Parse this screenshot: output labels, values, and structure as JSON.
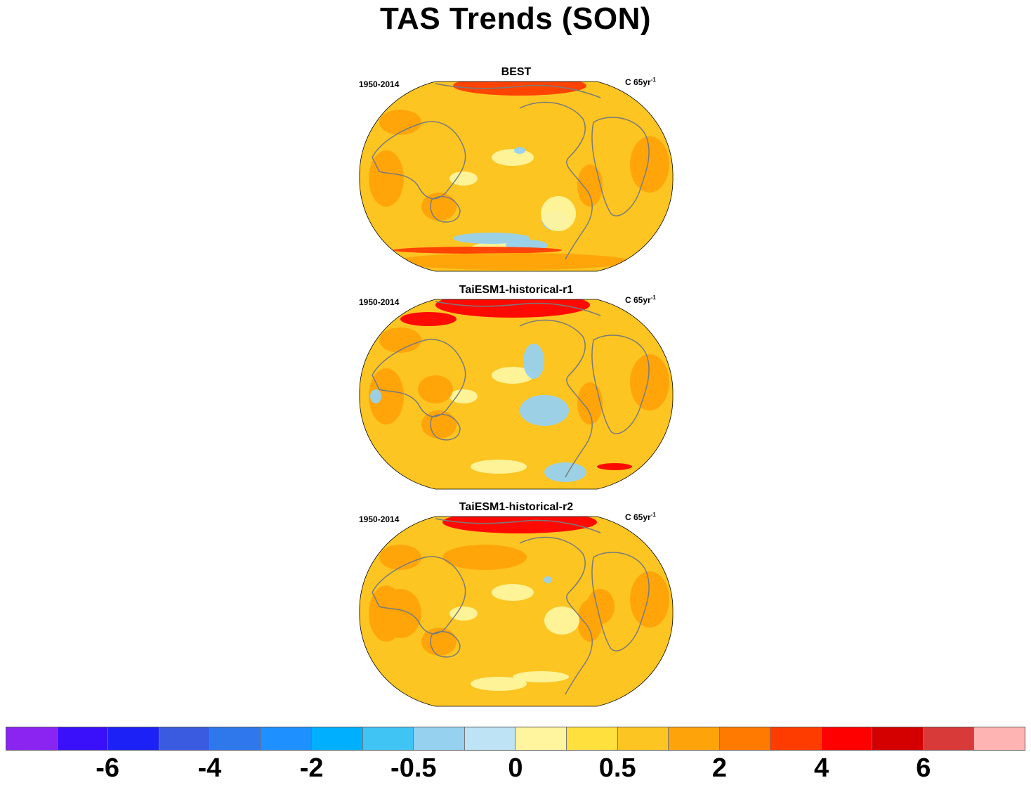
{
  "title": "TAS Trends (SON)",
  "panels": [
    {
      "title": "BEST",
      "period": "1950-2014",
      "units": "C 65yr",
      "units_sup": "-1"
    },
    {
      "title": "TaiESM1-historical-r1",
      "period": "1950-2014",
      "units": "C 65yr",
      "units_sup": "-1"
    },
    {
      "title": "TaiESM1-historical-r2",
      "period": "1950-2014",
      "units": "C 65yr",
      "units_sup": "-1"
    }
  ],
  "colorbar": {
    "colors": [
      "#8a24f0",
      "#3a10fa",
      "#1c22f5",
      "#3a5ae0",
      "#2f78ec",
      "#1e90ff",
      "#00b0ff",
      "#40c4f4",
      "#96d1f0",
      "#bde3f5",
      "#fff59e",
      "#ffe03c",
      "#fcc522",
      "#ffa30a",
      "#ff7a00",
      "#ff3c00",
      "#ff0000",
      "#d40000",
      "#d83a3a",
      "#ffb4b4"
    ],
    "labels": [
      {
        "text": "-6",
        "boundary": 2
      },
      {
        "text": "-4",
        "boundary": 4
      },
      {
        "text": "-2",
        "boundary": 6
      },
      {
        "text": "-0.5",
        "boundary": 8
      },
      {
        "text": "0",
        "boundary": 10
      },
      {
        "text": "0.5",
        "boundary": 12
      },
      {
        "text": "2",
        "boundary": 14
      },
      {
        "text": "4",
        "boundary": 16
      },
      {
        "text": "6",
        "boundary": 18
      }
    ]
  },
  "map_fill": {
    "base": "#fcc522",
    "land_outline": "#7a7a7a",
    "warm_arctic_best": "#ff3c00",
    "warm_arctic_model": "#ff0000",
    "cool_patch": "#96d1f0",
    "pale_patch": "#fff59e",
    "orange_patch": "#ffa30a"
  }
}
